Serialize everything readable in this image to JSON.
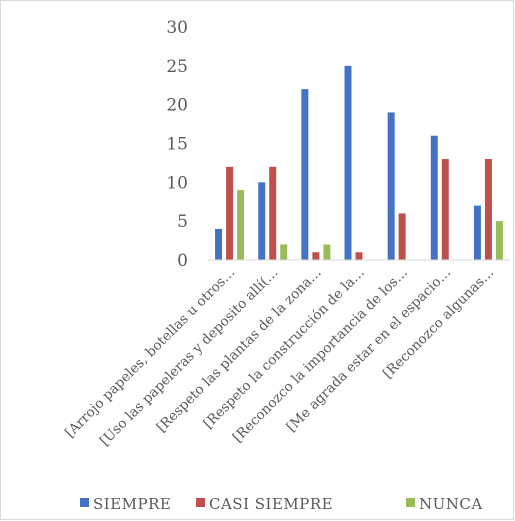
{
  "chart_data": {
    "type": "bar",
    "categories": [
      "[Arrojo papeles, botellas u otros…",
      "[Uso las papeleras y deposito allí(…",
      "[Respeto las plantas de la zona…",
      "[Respeto la construcción de la…",
      "[Reconozco la importancia de los…",
      "[Me agrada estar en el espacio…",
      "[Reconozco algunas…"
    ],
    "series": [
      {
        "name": "SIEMPRE",
        "color": "#4472c4",
        "values": [
          4,
          10,
          22,
          25,
          19,
          16,
          7
        ]
      },
      {
        "name": "CASI SIEMPRE",
        "color": "#c0504d",
        "values": [
          12,
          12,
          1,
          1,
          6,
          13,
          13
        ]
      },
      {
        "name": "NUNCA",
        "color": "#9bbb59",
        "values": [
          9,
          2,
          2,
          0,
          0,
          0,
          5
        ]
      }
    ],
    "ylim": [
      0,
      30
    ],
    "yticks": [
      0,
      5,
      10,
      15,
      20,
      25,
      30
    ],
    "grid": false,
    "legend": "bottom",
    "title": "",
    "xlabel": "",
    "ylabel": ""
  }
}
